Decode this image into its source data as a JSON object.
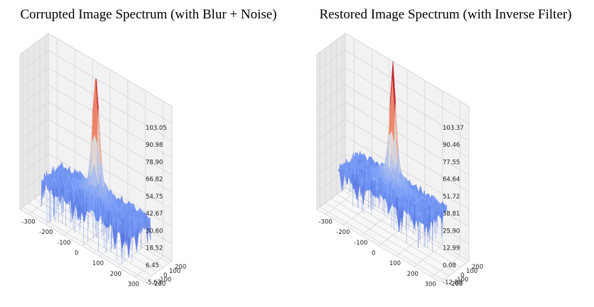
{
  "chart_data": [
    {
      "type": "surface",
      "title": "Corrupted Image Spectrum (with Blur + Noise)",
      "x_ticks": [
        "-300",
        "-200",
        "-100",
        "0",
        "100",
        "200",
        "300"
      ],
      "y_ticks": [
        "-200",
        "-100",
        "0",
        "100",
        "200"
      ],
      "z_ticks": [
        "103.05",
        "90.98",
        "78.90",
        "66.82",
        "54.75",
        "42.67",
        "30.60",
        "18.52",
        "6.45",
        "-5.63"
      ],
      "xlim": [
        -350,
        350
      ],
      "ylim": [
        -250,
        250
      ],
      "zlim": [
        -5.63,
        103.05
      ],
      "peak": 103.05,
      "baseline": 18.5,
      "colormap": "coolwarm",
      "grid": true
    },
    {
      "type": "surface",
      "title": "Restored Image Spectrum (with Inverse Filter)",
      "x_ticks": [
        "-300",
        "-200",
        "-100",
        "0",
        "100",
        "200",
        "300"
      ],
      "y_ticks": [
        "-200",
        "-100",
        "0",
        "100",
        "200"
      ],
      "z_ticks": [
        "103.37",
        "90.46",
        "77.55",
        "64.64",
        "51.72",
        "38.81",
        "25.90",
        "12.99",
        "0.08",
        "-12.83"
      ],
      "xlim": [
        -350,
        350
      ],
      "ylim": [
        -250,
        250
      ],
      "zlim": [
        -12.83,
        103.37
      ],
      "peak": 103.37,
      "baseline": 22.0,
      "colormap": "coolwarm",
      "grid": true
    }
  ]
}
